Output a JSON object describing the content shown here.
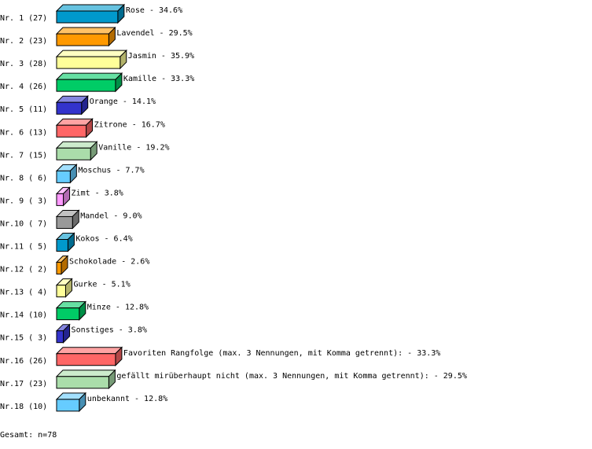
{
  "chart_data": {
    "type": "bar",
    "orientation": "horizontal",
    "style": "3d",
    "categories": [
      "Nr. 1 (27)",
      "Nr. 2 (23)",
      "Nr. 3 (28)",
      "Nr. 4 (26)",
      "Nr. 5 (11)",
      "Nr. 6 (13)",
      "Nr. 7 (15)",
      "Nr. 8 ( 6)",
      "Nr. 9 ( 3)",
      "Nr.10 ( 7)",
      "Nr.11 ( 5)",
      "Nr.12 ( 2)",
      "Nr.13 ( 4)",
      "Nr.14 (10)",
      "Nr.15 ( 3)",
      "Nr.16 (26)",
      "Nr.17 (23)",
      "Nr.18 (10)"
    ],
    "names": [
      "Rose",
      "Lavendel",
      "Jasmin",
      "Kamille",
      "Orange",
      "Zitrone",
      "Vanille",
      "Moschus",
      "Zimt",
      "Mandel",
      "Kokos",
      "Schokolade",
      "Gurke",
      "Minze",
      "Sonstiges",
      "Favoriten Rangfolge (max. 3 Nennungen, mit Komma getrennt):",
      "gefällt mirüberhaupt nicht (max. 3 Nennungen, mit Komma getrennt):",
      "unbekannt"
    ],
    "counts": [
      27,
      23,
      28,
      26,
      11,
      13,
      15,
      6,
      3,
      7,
      5,
      2,
      4,
      10,
      3,
      26,
      23,
      10
    ],
    "values": [
      34.6,
      29.5,
      35.9,
      33.3,
      14.1,
      16.7,
      19.2,
      7.7,
      3.8,
      9.0,
      6.4,
      2.6,
      5.1,
      12.8,
      3.8,
      33.3,
      29.5,
      12.8
    ],
    "colors": [
      "#0099cc",
      "#ff9900",
      "#ffff99",
      "#00cc66",
      "#3333cc",
      "#ff6666",
      "#aaddaa",
      "#66ccff",
      "#ff99ff",
      "#999999",
      "#0099cc",
      "#ff9900",
      "#ffff99",
      "#00cc66",
      "#3333cc",
      "#ff6666",
      "#aaddaa",
      "#66ccff"
    ],
    "unit": "%"
  },
  "footer": {
    "total": "Gesamt: n=78"
  }
}
